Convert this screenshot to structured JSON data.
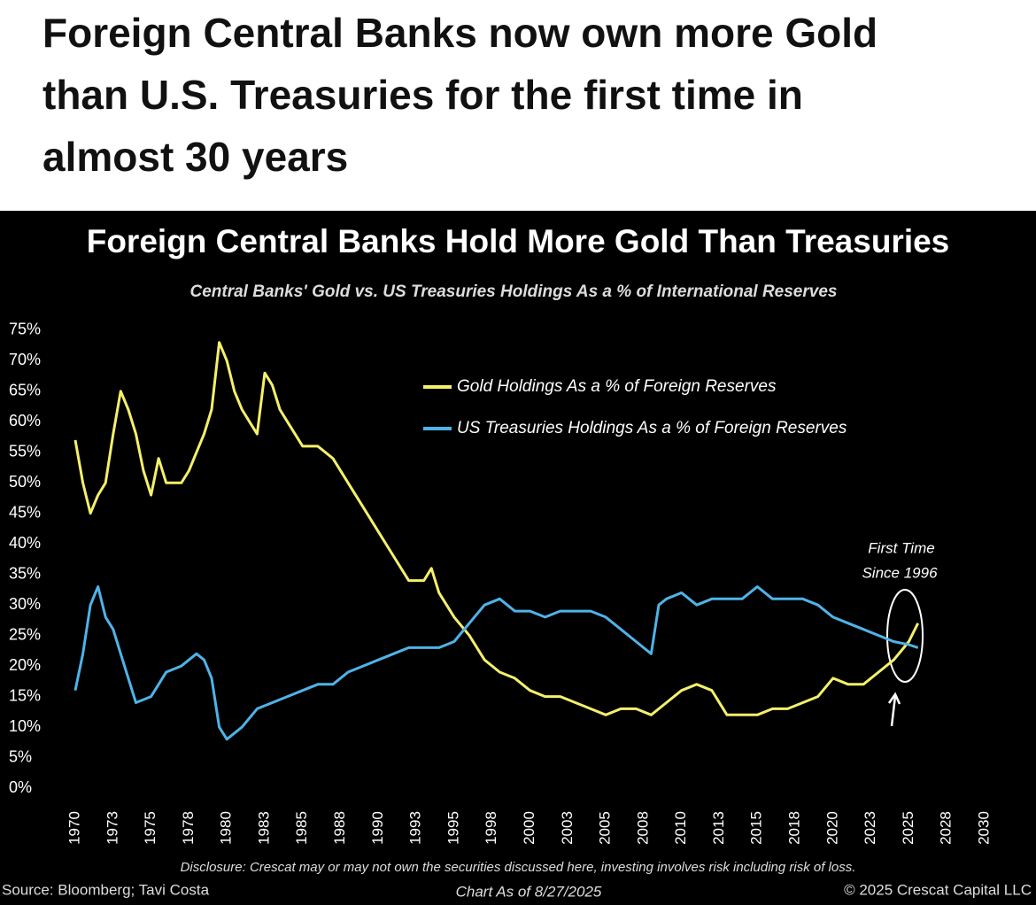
{
  "headline": "Foreign Central Banks now own more Gold than U.S. Treasuries for the first time in almost 30 years",
  "chart_data": {
    "type": "line",
    "title": "Foreign Central Banks Hold More Gold Than Treasuries",
    "subtitle": "Central Banks' Gold vs. US Treasuries Holdings As a % of International Reserves",
    "xlim": [
      1970,
      2030
    ],
    "xticks": [
      1970,
      {
        "value": 1972.5,
        "label": "1973"
      },
      1975,
      {
        "value": 1977.5,
        "label": "1978"
      },
      1980,
      {
        "value": 1982.5,
        "label": "1983"
      },
      1985,
      {
        "value": 1987.5,
        "label": "1988"
      },
      1990,
      {
        "value": 1992.5,
        "label": "1993"
      },
      1995,
      {
        "value": 1997.5,
        "label": "1998"
      },
      2000,
      {
        "value": 2002.5,
        "label": "2003"
      },
      2005,
      {
        "value": 2007.5,
        "label": "2008"
      },
      2010,
      {
        "value": 2012.5,
        "label": "2013"
      },
      2015,
      {
        "value": 2017.5,
        "label": "2018"
      },
      2020,
      {
        "value": 2022.5,
        "label": "2023"
      },
      2025,
      {
        "value": 2027.5,
        "label": "2028"
      },
      2030
    ],
    "ylim": [
      0,
      76
    ],
    "yticks": [
      {
        "value": 0,
        "label": "0%"
      },
      {
        "value": 5,
        "label": "5%"
      },
      {
        "value": 10,
        "label": "10%"
      },
      {
        "value": 15,
        "label": "15%"
      },
      {
        "value": 20,
        "label": "20%"
      },
      {
        "value": 25,
        "label": "25%"
      },
      {
        "value": 30,
        "label": "30%"
      },
      {
        "value": 35,
        "label": "35%"
      },
      {
        "value": 40,
        "label": "40%"
      },
      {
        "value": 45,
        "label": "45%"
      },
      {
        "value": 50,
        "label": "50%"
      },
      {
        "value": 55,
        "label": "55%"
      },
      {
        "value": 60,
        "label": "60%"
      },
      {
        "value": 65,
        "label": "65%"
      },
      {
        "value": 70,
        "label": "70%"
      },
      {
        "value": 75,
        "label": "75%"
      }
    ],
    "grid": false,
    "series": [
      {
        "name": "Gold Holdings As a % of Foreign Reserves",
        "color": "#f5f06a",
        "x": [
          1970,
          1970.5,
          1971,
          1971.5,
          1972,
          1972.5,
          1973,
          1973.5,
          1974,
          1974.5,
          1975,
          1975.5,
          1976,
          1976.5,
          1977,
          1977.5,
          1978,
          1978.5,
          1979,
          1979.5,
          1980,
          1980.5,
          1981,
          1981.5,
          1982,
          1982.5,
          1983,
          1983.5,
          1984,
          1985,
          1986,
          1987,
          1988,
          1989,
          1990,
          1991,
          1992,
          1993,
          1993.5,
          1994,
          1995,
          1996,
          1997,
          1998,
          1999,
          2000,
          2001,
          2002,
          2003,
          2004,
          2005,
          2006,
          2007,
          2008,
          2009,
          2010,
          2011,
          2012,
          2013,
          2014,
          2015,
          2016,
          2017,
          2018,
          2019,
          2020,
          2021,
          2022,
          2023,
          2024,
          2025,
          2025.6
        ],
        "values": [
          57,
          50,
          45,
          48,
          50,
          58,
          65,
          62,
          58,
          52,
          48,
          54,
          50,
          50,
          50,
          52,
          55,
          58,
          62,
          73,
          70,
          65,
          62,
          60,
          58,
          68,
          66,
          62,
          60,
          56,
          56,
          54,
          50,
          46,
          42,
          38,
          34,
          34,
          36,
          32,
          28,
          25,
          21,
          19,
          18,
          16,
          15,
          15,
          14,
          13,
          12,
          13,
          13,
          12,
          14,
          16,
          17,
          16,
          12,
          12,
          12,
          13,
          13,
          14,
          15,
          18,
          17,
          17,
          19,
          21,
          24,
          27
        ]
      },
      {
        "name": "US Treasuries Holdings As a % of Foreign Reserves",
        "color": "#4fb3e8",
        "x": [
          1970,
          1970.5,
          1971,
          1971.5,
          1972,
          1972.5,
          1973,
          1973.5,
          1974,
          1975,
          1976,
          1977,
          1978,
          1978.5,
          1979,
          1979.5,
          1980,
          1981,
          1982,
          1983,
          1984,
          1985,
          1986,
          1987,
          1988,
          1989,
          1990,
          1991,
          1992,
          1993,
          1994,
          1995,
          1996,
          1997,
          1998,
          1999,
          2000,
          2001,
          2002,
          2003,
          2004,
          2005,
          2006,
          2007,
          2008,
          2008.5,
          2009,
          2010,
          2011,
          2012,
          2013,
          2014,
          2015,
          2016,
          2017,
          2018,
          2019,
          2020,
          2021,
          2022,
          2023,
          2024,
          2025,
          2025.6
        ],
        "values": [
          16,
          22,
          30,
          33,
          28,
          26,
          22,
          18,
          14,
          15,
          19,
          20,
          22,
          21,
          18,
          10,
          8,
          10,
          13,
          14,
          15,
          16,
          17,
          17,
          19,
          20,
          21,
          22,
          23,
          23,
          23,
          24,
          27,
          30,
          31,
          29,
          29,
          28,
          29,
          29,
          29,
          28,
          26,
          24,
          22,
          30,
          31,
          32,
          30,
          31,
          31,
          31,
          33,
          31,
          31,
          31,
          30,
          28,
          27,
          26,
          25,
          24,
          23.5,
          23
        ]
      }
    ],
    "annotations": [
      "First Time",
      "Since 1996"
    ],
    "disclosure": "Disclosure: Crescat may or may not own the securities discussed here, investing involves risk including risk of loss.",
    "source": "Source: Bloomberg; Tavi Costa",
    "chart_date": "Chart As of 8/27/2025",
    "copyright": "© 2025 Crescat Capital LLC"
  }
}
